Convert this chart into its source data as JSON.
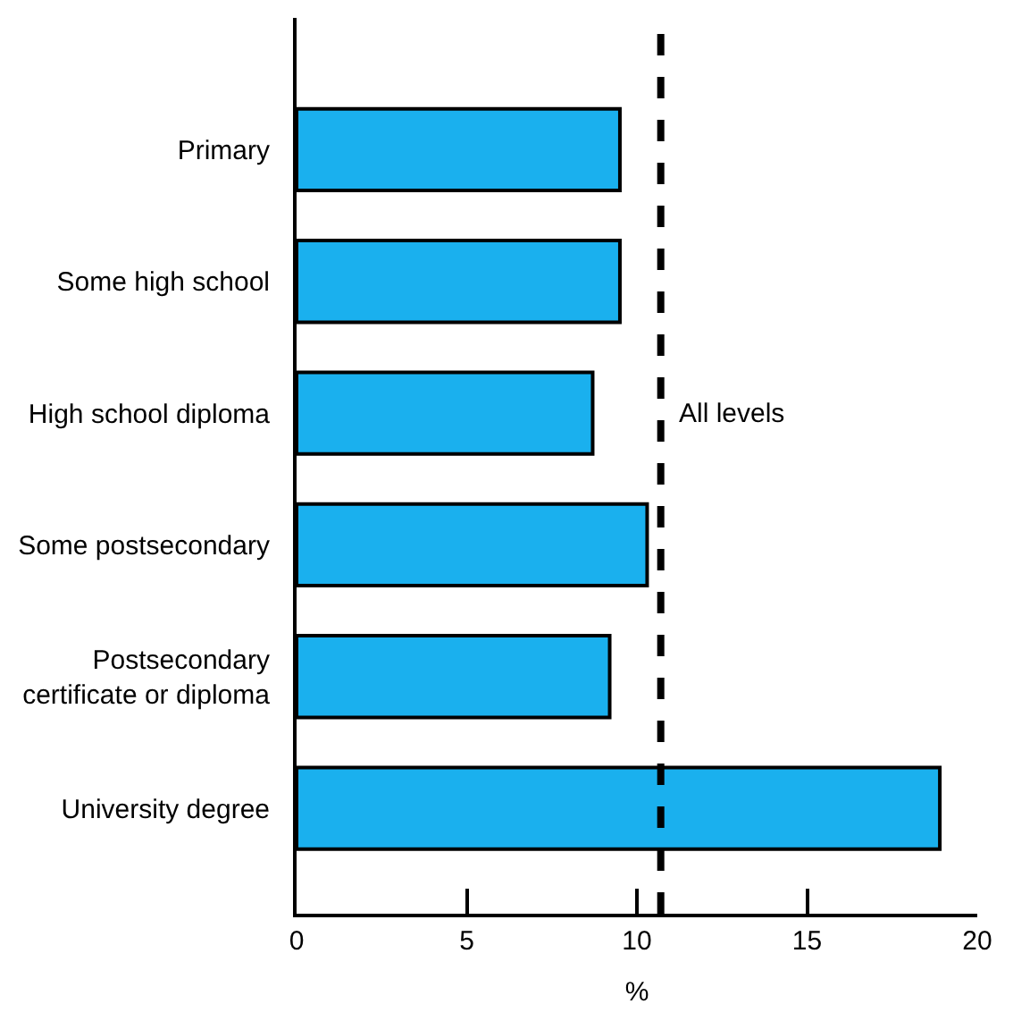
{
  "chart_data": {
    "type": "bar",
    "orientation": "horizontal",
    "xlabel": "%",
    "categories": [
      "Primary",
      "Some high school",
      "High school diploma",
      "Some postsecondary",
      "Postsecondary\ncertificate or diploma",
      "University degree"
    ],
    "values": [
      9.5,
      9.5,
      8.7,
      10.3,
      9.2,
      18.9
    ],
    "color": "#1ab0ee",
    "xlim": [
      0,
      20
    ],
    "xticks": [
      0,
      5,
      10,
      15,
      20
    ],
    "ref_lines": [
      {
        "axis": "x",
        "value": 10.7,
        "label": "All levels",
        "color": "#000000",
        "line_style": "dashed"
      }
    ]
  }
}
